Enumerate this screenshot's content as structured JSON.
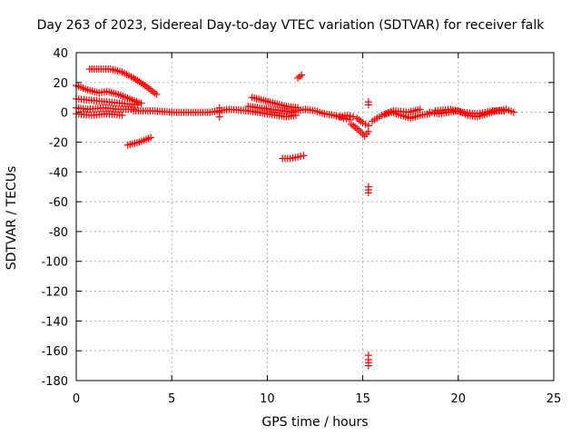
{
  "chart_data": {
    "type": "scatter",
    "title": "Day 263 of 2023, Sidereal Day-to-day VTEC variation (SDTVAR) for receiver falk",
    "xlabel": "GPS time / hours",
    "ylabel": "SDTVAR / TECUs",
    "xlim": [
      0,
      25
    ],
    "ylim": [
      -180,
      40
    ],
    "xticks": [
      0,
      5,
      10,
      15,
      20,
      25
    ],
    "yticks": [
      -180,
      -160,
      -140,
      -120,
      -100,
      -80,
      -60,
      -40,
      -20,
      0,
      20,
      40
    ],
    "grid": true,
    "marker": "+",
    "color": "#ff0000",
    "segments": [
      {
        "x": [
          0.0,
          0.6,
          1.2,
          1.6,
          2.2,
          2.8,
          3.4
        ],
        "y": [
          18,
          15,
          13,
          14,
          12,
          9,
          6
        ]
      },
      {
        "x": [
          0.0,
          0.8,
          1.6,
          2.4,
          3.2
        ],
        "y": [
          9,
          8,
          7,
          6,
          5
        ]
      },
      {
        "x": [
          0.0,
          0.6,
          1.4,
          2.2,
          3.0
        ],
        "y": [
          3,
          2,
          3,
          2,
          2
        ]
      },
      {
        "x": [
          0.0,
          0.8,
          1.6,
          2.4
        ],
        "y": [
          -1,
          -2,
          -1,
          -2
        ]
      },
      {
        "x": [
          0.7,
          1.3,
          1.8,
          2.4,
          3.0,
          3.6,
          4.2
        ],
        "y": [
          29,
          29,
          29,
          27,
          23,
          18,
          12
        ]
      },
      {
        "x": [
          2.7,
          3.3,
          3.9
        ],
        "y": [
          -22,
          -20,
          -17
        ]
      },
      {
        "x": [
          3.0,
          4.0,
          5.0,
          6.0,
          7.0,
          8.0,
          9.0,
          10.0,
          11.0,
          11.5
        ],
        "y": [
          1,
          1,
          0,
          0,
          0,
          2,
          1,
          -1,
          -3,
          -2
        ]
      },
      {
        "x": [
          7.5,
          7.5,
          7.5
        ],
        "y": [
          -3,
          0,
          3
        ]
      },
      {
        "x": [
          9.2,
          9.8,
          10.4,
          11.0,
          11.6
        ],
        "y": [
          10,
          8,
          6,
          4,
          3
        ]
      },
      {
        "x": [
          9.0,
          9.6,
          10.2,
          10.8,
          11.4
        ],
        "y": [
          4,
          3,
          2,
          1,
          0
        ]
      },
      {
        "x": [
          10.8,
          11.2,
          11.6,
          11.9
        ],
        "y": [
          -31,
          -31,
          -30,
          -29
        ]
      },
      {
        "x": [
          11.6,
          11.8
        ],
        "y": [
          23,
          25
        ]
      },
      {
        "x": [
          11.5,
          12.0,
          12.5,
          13.0,
          13.5,
          14.0,
          14.3
        ],
        "y": [
          1,
          2,
          1,
          -1,
          -2,
          -4,
          -5
        ]
      },
      {
        "x": [
          13.8,
          14.2,
          14.5
        ],
        "y": [
          -3,
          -2,
          -3
        ]
      },
      {
        "x": [
          14.4,
          14.8,
          15.1,
          15.3
        ],
        "y": [
          -8,
          -12,
          -16,
          -13
        ]
      },
      {
        "x": [
          14.7,
          15.0,
          15.3
        ],
        "y": [
          -4,
          -7,
          -9
        ]
      },
      {
        "x": [
          15.3,
          15.3
        ],
        "y": [
          5,
          7
        ]
      },
      {
        "x": [
          15.3,
          15.3,
          15.3
        ],
        "y": [
          -50,
          -52,
          -54
        ]
      },
      {
        "x": [
          15.3,
          15.3,
          15.3,
          15.3
        ],
        "y": [
          -163,
          -166,
          -168,
          -170
        ]
      },
      {
        "x": [
          15.5,
          16.0,
          16.5,
          17.0,
          17.5,
          18.0,
          18.5
        ],
        "y": [
          -6,
          -2,
          0,
          -2,
          -4,
          -2,
          -1
        ]
      },
      {
        "x": [
          16.2,
          16.6,
          17.4,
          18.0
        ],
        "y": [
          -1,
          1,
          0,
          2
        ]
      },
      {
        "x": [
          18.5,
          19.0,
          19.5,
          20.0,
          20.5,
          21.0,
          21.5,
          22.0,
          22.5,
          22.9
        ],
        "y": [
          0,
          -1,
          0,
          1,
          -2,
          -3,
          -1,
          1,
          2,
          0
        ]
      },
      {
        "x": [
          18.8,
          19.6,
          20.2,
          21.0,
          21.8,
          22.4
        ],
        "y": [
          1,
          2,
          0,
          -1,
          1,
          1
        ]
      }
    ]
  }
}
